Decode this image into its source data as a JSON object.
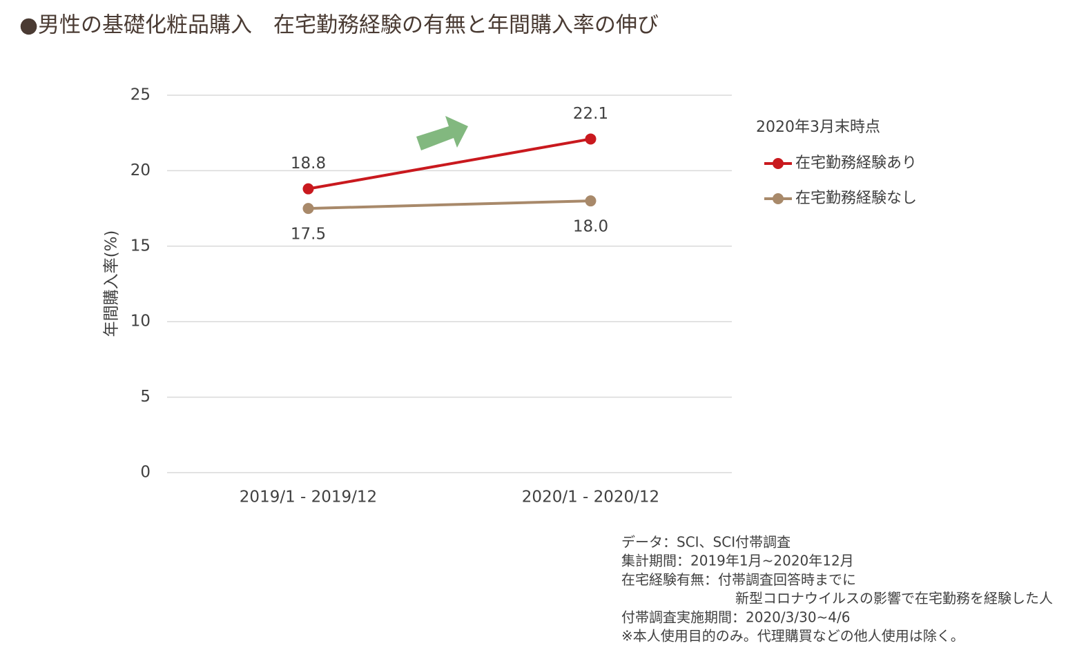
{
  "chart_data": {
    "type": "line",
    "title": "●男性の基礎化粧品購入　在宅勤務経験の有無と年間購入率の伸び",
    "y_label": "年間購入率(%)",
    "categories": [
      "2019/1 - 2019/12",
      "2020/1 - 2020/12"
    ],
    "series": [
      {
        "name": "在宅勤務経験あり",
        "color": "#c9191e",
        "values": [
          18.8,
          22.1
        ],
        "value_labels": [
          "18.8",
          "22.1"
        ]
      },
      {
        "name": "在宅勤務経験なし",
        "color": "#a8896a",
        "values": [
          17.5,
          18.0
        ],
        "value_labels": [
          "17.5",
          "18.0"
        ]
      }
    ],
    "legend_title": "2020年3月末時点",
    "ylim": [
      0,
      25
    ],
    "yticks": [
      0,
      5,
      10,
      15,
      20,
      25
    ],
    "grid": true,
    "notes": [
      "データ：SCI、SCI付帯調査",
      "集計期間：2019年1月~2020年12月",
      "在宅経験有無：付帯調査回答時までに",
      "新型コロナウイルスの影響で在宅勤務を経験した人",
      "付帯調査実施期間：2020/3/30~4/6",
      "※本人使用目的のみ。代理購買などの他人使用は除く。"
    ]
  }
}
